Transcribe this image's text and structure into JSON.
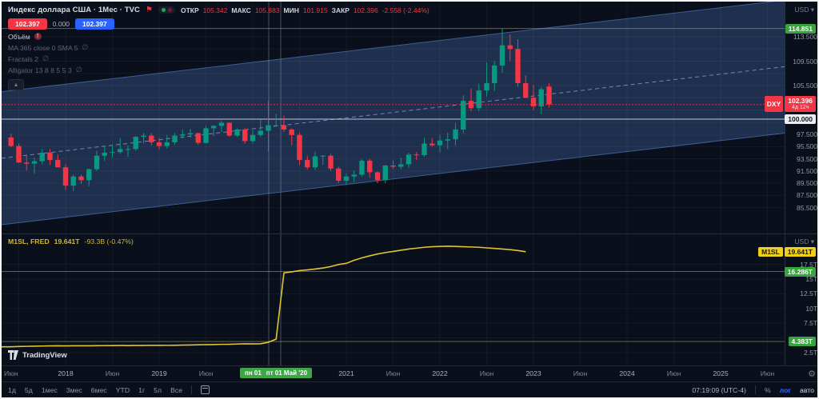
{
  "colors": {
    "up": "#089981",
    "down": "#f23645",
    "buy": "#2962ff",
    "sell": "#f23645",
    "m1sl_line": "#e0c531",
    "channel_fill": "#24385c",
    "level_line": "#a8b45a",
    "label_green": "#37a43d",
    "label_yellow": "#f0cf1d"
  },
  "header": {
    "title": "Индекс доллара США · 1Мес · TVC",
    "ohlc": {
      "open_label": "ОТКР",
      "open": "105.342",
      "high_label": "МАКС",
      "high": "105.883",
      "low_label": "МИН",
      "low": "101.915",
      "close_label": "ЗАКР",
      "close": "102.396",
      "change": "-2.558 (-2.44%)"
    },
    "sell_price": "102.397",
    "spread": "0.000",
    "buy_price": "102.397"
  },
  "legend": {
    "volume_label": "Объём",
    "volume_error": "!",
    "indicators": [
      {
        "label": "MA 365 close 0 SMA 5"
      },
      {
        "label": "Fractals 2"
      },
      {
        "label": "Alligator 13 8 8 5 5 3"
      }
    ]
  },
  "pane2_legend": {
    "title": "M1SL, FRED",
    "value": "19.641T",
    "change": "-93.3B (-0.47%)"
  },
  "price_axis": {
    "currency": "USD",
    "high_label": "114.851",
    "last": {
      "symbol": "DXY",
      "price": "102.396",
      "countdown": "4д 12ч"
    },
    "level_100": "100.000",
    "ticks": [
      {
        "text": "113.500",
        "p": 113.5
      },
      {
        "text": "109.500",
        "p": 109.5
      },
      {
        "text": "105.500",
        "p": 105.5
      },
      {
        "text": "97.500",
        "p": 97.5
      },
      {
        "text": "95.500",
        "p": 95.5
      },
      {
        "text": "93.500",
        "p": 93.5
      },
      {
        "text": "91.500",
        "p": 91.5
      },
      {
        "text": "89.500",
        "p": 89.5
      },
      {
        "text": "87.500",
        "p": 87.5
      },
      {
        "text": "85.500",
        "p": 85.5
      }
    ]
  },
  "pane2_axis": {
    "currency": "USD",
    "value_label": {
      "symbol": "M1SL",
      "value": "19.641T"
    },
    "level_upper": "16.286T",
    "level_lower": "4.383T",
    "ticks": [
      {
        "text": "17.5T",
        "v": 17.5
      },
      {
        "text": "15T",
        "v": 15
      },
      {
        "text": "12.5T",
        "v": 12.5
      },
      {
        "text": "10T",
        "v": 10
      },
      {
        "text": "7.5T",
        "v": 7.5
      },
      {
        "text": "2.5T",
        "v": 2.5
      }
    ]
  },
  "time_axis": {
    "labels": [
      {
        "text": "Июн",
        "m": 0
      },
      {
        "text": "2018",
        "m": 7
      },
      {
        "text": "Июн",
        "m": 13
      },
      {
        "text": "2019",
        "m": 19
      },
      {
        "text": "Июн",
        "m": 25
      },
      {
        "text": "2021",
        "m": 43
      },
      {
        "text": "Июн",
        "m": 49
      },
      {
        "text": "2022",
        "m": 55
      },
      {
        "text": "Июн",
        "m": 61
      },
      {
        "text": "2023",
        "m": 67
      },
      {
        "text": "Июн",
        "m": 73
      },
      {
        "text": "2024",
        "m": 79
      },
      {
        "text": "Июн",
        "m": 85
      },
      {
        "text": "2025",
        "m": 91
      },
      {
        "text": "Июн",
        "m": 97
      }
    ],
    "selected": {
      "part1": "пн 01",
      "part2": "пт 01 Май '20"
    }
  },
  "toolbar": {
    "ranges": [
      "1д",
      "5д",
      "1мес",
      "3мес",
      "6мес",
      "YTD",
      "1г",
      "5л",
      "Все"
    ],
    "clock": "07:19:09 (UTC-4)",
    "percent": "%",
    "log": "лог",
    "auto": "авто"
  },
  "logo_text": "TradingView",
  "chart_data": {
    "type": "candlestick",
    "title": "Индекс доллара США (DXY), 1Мес, TVC",
    "interval": "1M",
    "start_month": "2017-06",
    "ylim_price": [
      84,
      116
    ],
    "last_close": 102.396,
    "candles": [
      [
        97.0,
        97.6,
        95.4,
        95.6
      ],
      [
        95.6,
        96.0,
        92.8,
        92.9
      ],
      [
        92.9,
        94.1,
        91.6,
        92.7
      ],
      [
        92.7,
        93.7,
        91.1,
        93.1
      ],
      [
        93.1,
        95.1,
        92.6,
        94.5
      ],
      [
        94.5,
        95.1,
        92.5,
        93.3
      ],
      [
        93.3,
        94.2,
        92.2,
        92.1
      ],
      [
        92.1,
        92.6,
        88.4,
        89.1
      ],
      [
        89.1,
        90.9,
        88.2,
        90.6
      ],
      [
        90.6,
        90.9,
        89.4,
        90.0
      ],
      [
        90.0,
        91.9,
        89.0,
        91.8
      ],
      [
        91.8,
        94.8,
        91.5,
        94.0
      ],
      [
        94.0,
        95.5,
        93.2,
        94.5
      ],
      [
        94.5,
        95.7,
        93.7,
        94.6
      ],
      [
        94.6,
        96.9,
        94.3,
        95.1
      ],
      [
        95.1,
        95.7,
        93.8,
        95.1
      ],
      [
        95.1,
        97.2,
        94.8,
        97.1
      ],
      [
        97.1,
        97.7,
        96.0,
        97.3
      ],
      [
        97.3,
        97.7,
        95.7,
        96.2
      ],
      [
        96.2,
        96.9,
        95.0,
        95.6
      ],
      [
        95.6,
        97.4,
        95.2,
        96.2
      ],
      [
        96.2,
        97.7,
        95.8,
        97.3
      ],
      [
        97.3,
        98.3,
        96.8,
        97.5
      ],
      [
        97.5,
        98.4,
        97.0,
        97.7
      ],
      [
        97.7,
        97.8,
        95.8,
        96.1
      ],
      [
        96.1,
        98.9,
        96.0,
        98.5
      ],
      [
        98.5,
        99.0,
        97.2,
        98.9
      ],
      [
        98.9,
        99.7,
        97.9,
        99.4
      ],
      [
        99.4,
        99.5,
        97.1,
        97.3
      ],
      [
        97.3,
        98.5,
        97.1,
        98.3
      ],
      [
        98.3,
        98.5,
        96.0,
        96.4
      ],
      [
        96.4,
        98.2,
        96.0,
        97.4
      ],
      [
        97.4,
        99.9,
        97.1,
        98.1
      ],
      [
        98.1,
        103.0,
        94.7,
        99.0
      ],
      [
        99.0,
        100.9,
        98.8,
        99.0
      ],
      [
        99.0,
        100.6,
        97.9,
        98.3
      ],
      [
        98.3,
        98.5,
        95.7,
        97.4
      ],
      [
        97.4,
        97.8,
        92.5,
        93.3
      ],
      [
        93.3,
        94.0,
        91.7,
        92.1
      ],
      [
        92.1,
        94.7,
        91.7,
        93.9
      ],
      [
        93.9,
        94.1,
        92.5,
        94.0
      ],
      [
        94.0,
        94.3,
        91.5,
        91.9
      ],
      [
        91.9,
        92.2,
        89.5,
        89.9
      ],
      [
        89.9,
        91.1,
        89.2,
        90.6
      ],
      [
        90.6,
        91.6,
        89.7,
        90.9
      ],
      [
        90.9,
        93.4,
        90.6,
        93.2
      ],
      [
        93.2,
        93.5,
        90.4,
        91.3
      ],
      [
        91.3,
        91.4,
        89.5,
        90.0
      ],
      [
        90.0,
        92.5,
        89.5,
        92.4
      ],
      [
        92.4,
        93.2,
        91.8,
        92.2
      ],
      [
        92.2,
        93.7,
        91.8,
        92.6
      ],
      [
        92.6,
        94.5,
        92.0,
        94.2
      ],
      [
        94.2,
        94.6,
        93.3,
        94.1
      ],
      [
        94.1,
        96.9,
        93.8,
        96.0
      ],
      [
        96.0,
        96.9,
        95.5,
        95.7
      ],
      [
        95.7,
        97.4,
        94.6,
        96.5
      ],
      [
        96.5,
        97.8,
        95.1,
        96.7
      ],
      [
        96.7,
        99.4,
        95.7,
        98.3
      ],
      [
        98.3,
        103.9,
        97.7,
        103.0
      ],
      [
        103.0,
        105.0,
        101.3,
        101.8
      ],
      [
        101.8,
        105.8,
        101.3,
        104.7
      ],
      [
        104.7,
        109.3,
        103.7,
        105.9
      ],
      [
        105.9,
        109.5,
        104.6,
        108.8
      ],
      [
        108.8,
        114.851,
        107.6,
        112.1
      ],
      [
        112.1,
        113.9,
        109.5,
        111.5
      ],
      [
        111.5,
        113.1,
        105.3,
        105.9
      ],
      [
        105.9,
        107.2,
        103.4,
        103.5
      ],
      [
        103.5,
        105.6,
        101.5,
        102.1
      ],
      [
        102.1,
        105.3,
        100.8,
        104.9
      ],
      [
        105.342,
        105.883,
        101.915,
        102.396
      ]
    ],
    "series_m1sl": {
      "name": "M1SL",
      "units": "T USD",
      "start_month": "2017-06",
      "values": [
        3.5,
        3.54,
        3.57,
        3.6,
        3.62,
        3.64,
        3.66,
        3.65,
        3.66,
        3.67,
        3.67,
        3.68,
        3.69,
        3.7,
        3.71,
        3.7,
        3.72,
        3.71,
        3.74,
        3.73,
        3.74,
        3.75,
        3.78,
        3.8,
        3.83,
        3.85,
        3.87,
        3.91,
        3.92,
        3.96,
        4.0,
        3.98,
        4.0,
        4.26,
        4.79,
        16.04,
        16.23,
        16.43,
        16.56,
        16.71,
        16.88,
        17.12,
        17.47,
        17.67,
        18.2,
        18.6,
        18.95,
        19.25,
        19.5,
        19.7,
        19.9,
        20.1,
        20.25,
        20.4,
        20.5,
        20.55,
        20.58,
        20.55,
        20.5,
        20.45,
        20.4,
        20.3,
        20.2,
        20.1,
        20.0,
        19.85,
        19.641
      ]
    },
    "levels": {
      "price_high": 114.851,
      "price_round": 100.0,
      "m1sl_upper": 16.286,
      "m1sl_lower": 4.383
    },
    "channel": {
      "top_start": 104.5,
      "bottom_start": 82.7,
      "top_end": 119.5,
      "bottom_end": 97.7,
      "median_dashed": true
    }
  }
}
